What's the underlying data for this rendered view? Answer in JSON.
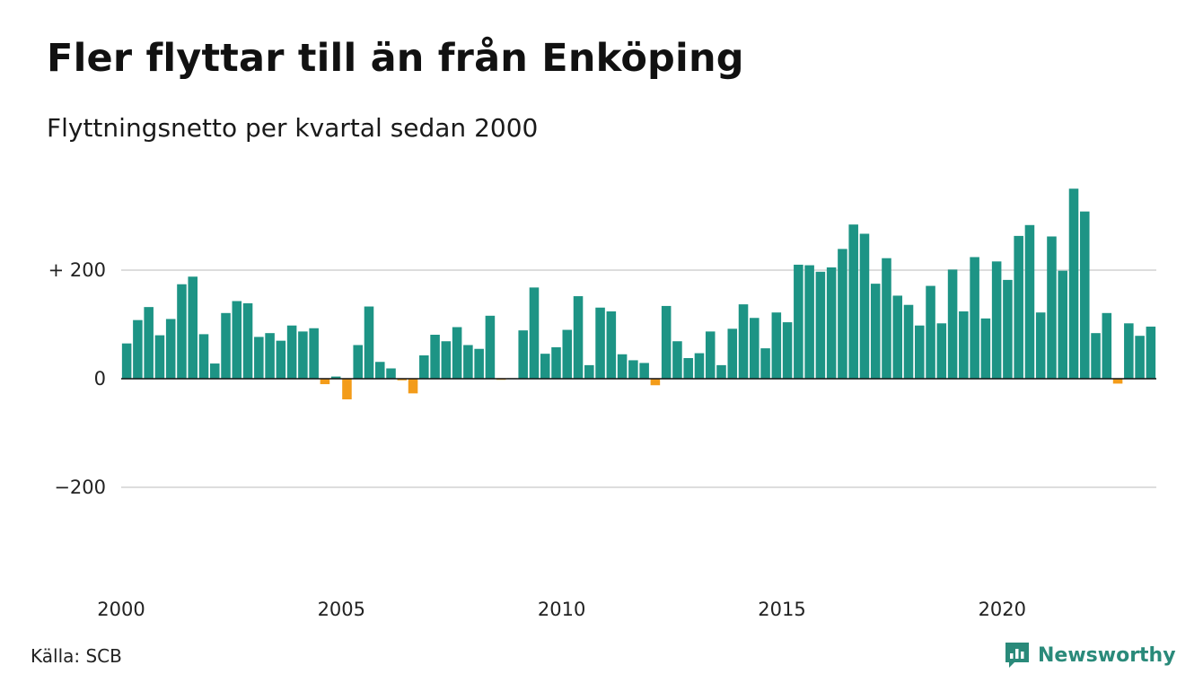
{
  "title": "Fler flyttar till än från Enköping",
  "subtitle": "Flyttningsnetto per kvartal sedan 2000",
  "source": "Källa: SCB",
  "brand": {
    "name": "Newsworthy",
    "icon": "newsworthy-logo-icon",
    "color": "#2a8a7a"
  },
  "colors": {
    "positive": "#1d9485",
    "negative": "#f39c1a",
    "grid": "#dddddd",
    "zero": "#111111"
  },
  "chart_data": {
    "type": "bar",
    "title": "Fler flyttar till än från Enköping",
    "subtitle": "Flyttningsnetto per kvartal sedan 2000",
    "xlabel": "",
    "ylabel": "",
    "ylim": [
      -380,
      380
    ],
    "yticks": [
      {
        "value": 200,
        "label": "+ 200"
      },
      {
        "value": 0,
        "label": "0"
      },
      {
        "value": -200,
        "label": "−200"
      }
    ],
    "xticks": [
      {
        "value": 2000,
        "label": "2000"
      },
      {
        "value": 2005,
        "label": "2005"
      },
      {
        "value": 2010,
        "label": "2010"
      },
      {
        "value": 2015,
        "label": "2015"
      },
      {
        "value": 2020,
        "label": "2020"
      }
    ],
    "start_year": 2000,
    "periods_per_year": 4,
    "grid": true,
    "values": [
      65,
      108,
      132,
      80,
      110,
      174,
      188,
      82,
      28,
      121,
      143,
      139,
      77,
      84,
      70,
      98,
      87,
      93,
      -10,
      4,
      -38,
      62,
      133,
      31,
      19,
      -3,
      -27,
      43,
      81,
      69,
      95,
      62,
      55,
      116,
      -2,
      1,
      89,
      168,
      46,
      58,
      90,
      152,
      25,
      131,
      124,
      45,
      34,
      29,
      -12,
      134,
      69,
      38,
      47,
      87,
      25,
      92,
      137,
      112,
      56,
      122,
      104,
      210,
      209,
      197,
      205,
      239,
      284,
      267,
      175,
      222,
      153,
      136,
      98,
      171,
      102,
      201,
      124,
      224,
      111,
      216,
      182,
      263,
      283,
      122,
      262,
      199,
      350,
      308,
      84,
      121,
      -9,
      102,
      79,
      96
    ]
  }
}
